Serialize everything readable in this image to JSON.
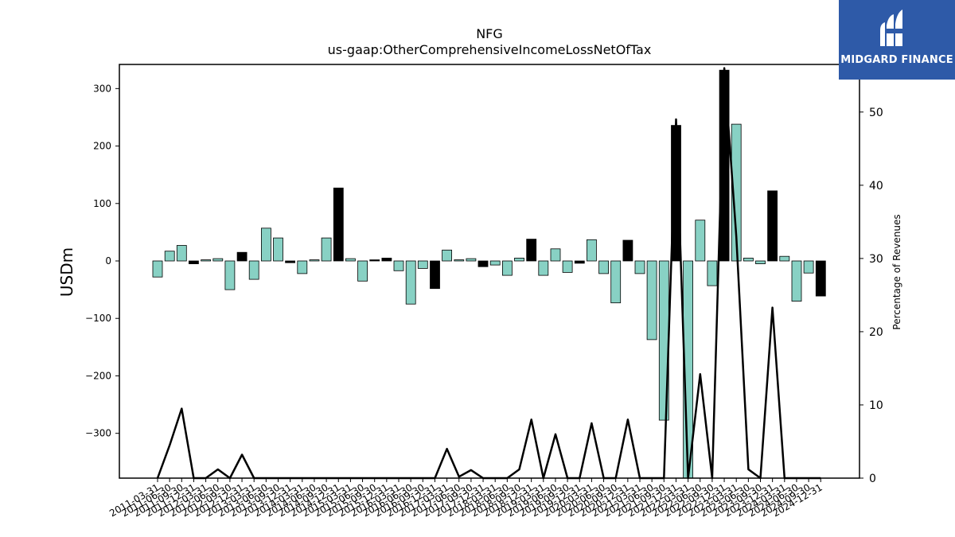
{
  "logo": {
    "text": "MIDGARD FINANCE"
  },
  "chart_data": {
    "type": "bar",
    "title": "NFG",
    "subtitle": "us-gaap:OtherComprehensiveIncomeLossNetOfTax",
    "ylabel": "USDm",
    "y2label": "Percentage of Revenues",
    "ylim": [
      -378,
      342
    ],
    "y2lim": [
      0,
      56.5
    ],
    "yticks": [
      -300,
      -200,
      -100,
      0,
      100,
      200,
      300
    ],
    "y2ticks": [
      0,
      10,
      20,
      30,
      40,
      50
    ],
    "colors": {
      "positive_fill": "#88d1c4",
      "negative_fill": "#000000",
      "edge": "#000000",
      "line": "#000000"
    },
    "categories": [
      "2011-03-31",
      "2011-06-30",
      "2011-09-30",
      "2011-12-31",
      "2012-03-31",
      "2012-06-30",
      "2012-09-30",
      "2012-12-31",
      "2013-03-31",
      "2013-06-30",
      "2013-09-30",
      "2013-12-31",
      "2014-03-31",
      "2014-06-30",
      "2014-09-30",
      "2014-12-31",
      "2015-03-31",
      "2015-06-30",
      "2015-09-30",
      "2015-12-31",
      "2016-03-31",
      "2016-06-30",
      "2016-09-30",
      "2016-12-31",
      "2017-03-31",
      "2017-06-30",
      "2017-09-30",
      "2017-12-31",
      "2018-03-31",
      "2018-06-30",
      "2018-09-30",
      "2018-12-31",
      "2019-03-31",
      "2019-06-30",
      "2019-09-30",
      "2019-12-31",
      "2020-03-31",
      "2020-06-30",
      "2020-09-30",
      "2020-12-31",
      "2021-03-31",
      "2021-06-30",
      "2021-09-30",
      "2021-12-31",
      "2022-03-31",
      "2022-06-30",
      "2022-09-30",
      "2022-12-31",
      "2023-03-31",
      "2023-06-30",
      "2023-09-30",
      "2023-12-31",
      "2024-03-31",
      "2024-06-30",
      "2024-09-30",
      "2024-12-31"
    ],
    "series": [
      {
        "values": [
          -28,
          17,
          27,
          -5,
          2,
          4,
          -50,
          15,
          -32,
          57,
          40,
          -3,
          -22,
          2,
          40,
          127,
          4,
          -35,
          2,
          5,
          -17,
          -75,
          -13,
          -48,
          19,
          2,
          4,
          -10,
          -7,
          -25,
          5,
          38,
          -25,
          21,
          -20,
          -4,
          37,
          -22,
          -73,
          36,
          -22,
          -137,
          -277,
          236,
          -380,
          71,
          -43,
          332,
          238,
          5,
          -5,
          122,
          8,
          -70,
          -21,
          -61
        ],
        "sign_flip": [
          false,
          false,
          false,
          true,
          false,
          false,
          false,
          true,
          false,
          false,
          false,
          true,
          false,
          false,
          false,
          true,
          false,
          false,
          true,
          true,
          false,
          false,
          false,
          true,
          false,
          false,
          false,
          true,
          false,
          false,
          false,
          true,
          false,
          false,
          false,
          true,
          false,
          false,
          false,
          true,
          false,
          false,
          false,
          true,
          false,
          false,
          false,
          true,
          false,
          false,
          false,
          true,
          false,
          false,
          false,
          true
        ]
      },
      {
        "values": [
          0,
          4.5,
          9.5,
          0,
          0,
          1.2,
          0,
          3.2,
          0,
          0,
          0,
          0,
          0,
          0,
          0,
          0,
          0,
          0,
          0,
          0,
          0,
          0,
          0,
          0,
          4,
          0.2,
          1.1,
          0,
          0,
          0,
          1.2,
          8,
          0,
          6,
          0,
          0,
          7.5,
          0,
          0,
          8,
          0,
          0,
          0,
          49,
          0,
          14.2,
          0,
          56,
          33,
          1.2,
          0,
          23.3,
          0,
          0,
          0,
          0
        ]
      }
    ]
  }
}
